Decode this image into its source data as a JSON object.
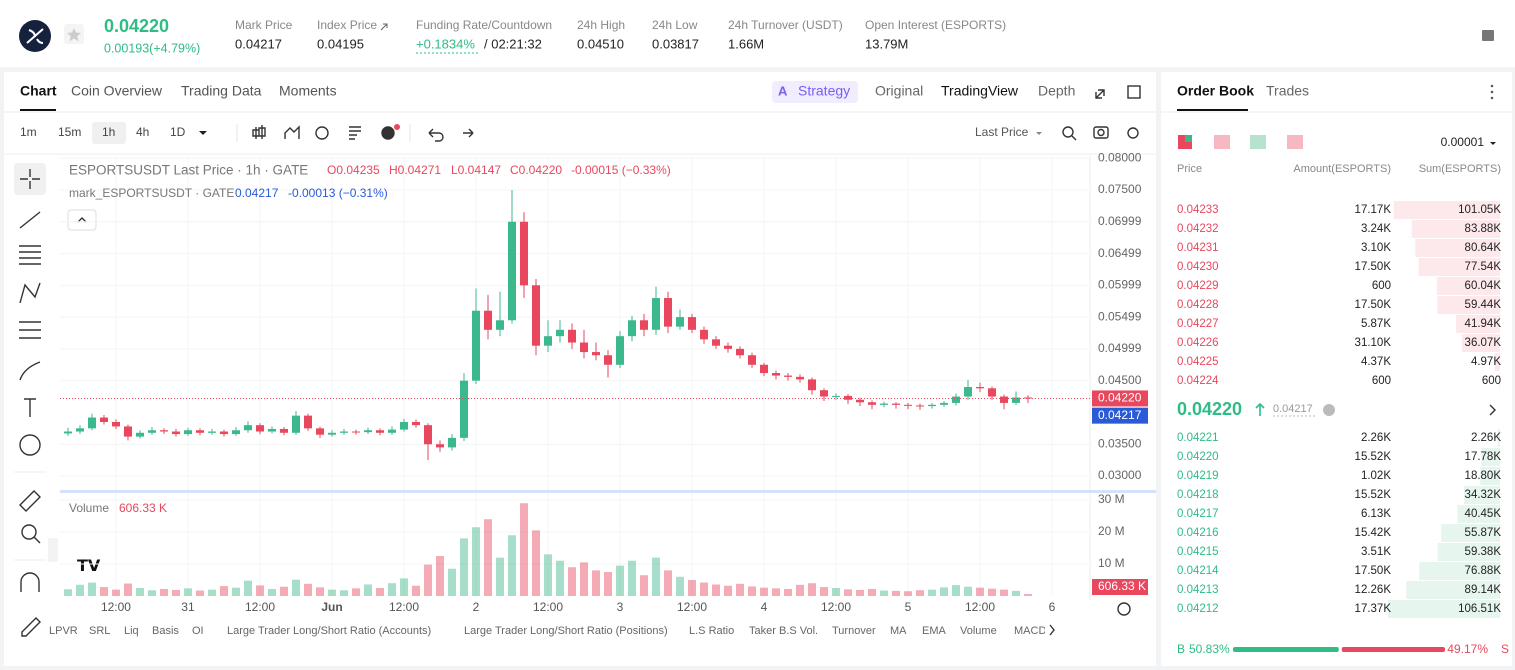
{
  "header": {
    "price": "0.04220",
    "change": "0.00193(+4.79%)",
    "stats": [
      {
        "label": "Mark Price",
        "value": "0.04217"
      },
      {
        "label": "Index Price",
        "value": "0.04195"
      },
      {
        "label": "Funding Rate/Countdown",
        "value": "+0.1834%",
        "countdown": "/ 02:21:32"
      },
      {
        "label": "24h High",
        "value": "0.04510"
      },
      {
        "label": "24h Low",
        "value": "0.03817"
      },
      {
        "label": "24h Turnover (USDT)",
        "value": "1.66M"
      },
      {
        "label": "Open Interest (ESPORTS)",
        "value": "13.79M"
      }
    ]
  },
  "tabs": [
    "Chart",
    "Coin Overview",
    "Trading Data",
    "Moments"
  ],
  "view_tabs": [
    "Strategy",
    "Original",
    "TradingView",
    "Depth"
  ],
  "intervals": [
    "1m",
    "15m",
    "1h",
    "4h",
    "1D"
  ],
  "price_source": "Last Price",
  "indicators": [
    "LPVR",
    "SRL",
    "Liq",
    "Basis",
    "OI",
    "Large Trader Long/Short Ratio (Accounts)",
    "Large Trader Long/Short Ratio (Positions)",
    "L.S Ratio",
    "Taker B.S Vol.",
    "Turnover",
    "MA",
    "EMA",
    "Volume",
    "MACD"
  ],
  "chart_data": {
    "type": "candlestick",
    "grid": true,
    "legend": {
      "title": "ESPORTSUSDT Last Price · 1h · GATE",
      "open": "O0.04235",
      "high": "H0.04271",
      "low": "L0.04147",
      "close": "C0.04220",
      "change": "-0.00015 (−0.33%)",
      "mark_title": "mark_ESPORTSUSDT · GATE",
      "mark_value": "0.04217",
      "mark_change": "-0.00013 (−0.31%)",
      "volume_title": "Volume",
      "volume_last": "606.33 K"
    },
    "last_price": {
      "value": 0.0422,
      "label": "0.04220"
    },
    "mark_price": {
      "value": 0.04217,
      "label": "0.04217"
    },
    "xlim": [
      -9.33,
      162.33
    ],
    "xticks": [
      {
        "value": 0,
        "label": "12:00"
      },
      {
        "value": 12,
        "label": "31"
      },
      {
        "value": 24,
        "label": "12:00"
      },
      {
        "value": 36,
        "label": "Jun"
      },
      {
        "value": 48,
        "label": "12:00"
      },
      {
        "value": 60,
        "label": "2"
      },
      {
        "value": 72,
        "label": "12:00"
      },
      {
        "value": 84,
        "label": "3"
      },
      {
        "value": 96,
        "label": "12:00"
      },
      {
        "value": 108,
        "label": "4"
      },
      {
        "value": 120,
        "label": "12:00"
      },
      {
        "value": 132,
        "label": "5"
      },
      {
        "value": 144,
        "label": "12:00"
      },
      {
        "value": 156,
        "label": "6"
      }
    ],
    "ylim": [
      0.0278,
      0.0805
    ],
    "yticks": [
      {
        "value": 0.08,
        "label": "0.08000"
      },
      {
        "value": 0.075,
        "label": "0.07500"
      },
      0.06999,
      0.06499,
      0.05999,
      0.05499,
      0.04999,
      {
        "value": 0.045,
        "label": "0.04500"
      },
      {
        "value": 0.035,
        "label": "0.03500"
      },
      {
        "value": 0.03,
        "label": "0.03000"
      }
    ],
    "vlim": [
      0,
      32500000
    ],
    "vticks": [
      {
        "value": 10000000,
        "label": "10 M"
      },
      {
        "value": 20000000,
        "label": "20 M"
      },
      {
        "value": 30000000,
        "label": "30 M"
      }
    ],
    "up_color": "#3bb88c",
    "down_color": "#e8475e",
    "x": [
      -8,
      -6,
      -4,
      -2,
      0,
      2,
      4,
      6,
      8,
      10,
      12,
      14,
      16,
      18,
      20,
      22,
      24,
      26,
      28,
      30,
      32,
      34,
      36,
      38,
      40,
      42,
      44,
      46,
      48,
      50,
      52,
      54,
      56,
      58,
      60,
      62,
      64,
      66,
      68,
      70,
      72,
      74,
      76,
      78,
      80,
      82,
      84,
      86,
      88,
      90,
      92,
      94,
      96,
      98,
      100,
      102,
      104,
      106,
      108,
      110,
      112,
      114,
      116,
      118,
      120,
      122,
      124,
      126,
      128,
      130,
      132,
      134,
      136,
      138,
      140,
      142,
      144,
      146,
      148,
      150,
      152
    ],
    "open": [
      0.0367,
      0.037,
      0.0375,
      0.0392,
      0.0385,
      0.0378,
      0.0362,
      0.0368,
      0.0372,
      0.037,
      0.0366,
      0.0372,
      0.0368,
      0.037,
      0.0366,
      0.0372,
      0.038,
      0.037,
      0.0374,
      0.0368,
      0.0395,
      0.0375,
      0.0365,
      0.0368,
      0.037,
      0.0369,
      0.0372,
      0.0368,
      0.0373,
      0.0385,
      0.038,
      0.035,
      0.0345,
      0.036,
      0.045,
      0.056,
      0.053,
      0.0545,
      0.07,
      0.06,
      0.0505,
      0.052,
      0.053,
      0.051,
      0.0495,
      0.049,
      0.0475,
      0.052,
      0.0545,
      0.053,
      0.058,
      0.0535,
      0.055,
      0.053,
      0.0515,
      0.0505,
      0.05,
      0.049,
      0.0475,
      0.0462,
      0.0458,
      0.0456,
      0.0452,
      0.0435,
      0.0425,
      0.0426,
      0.042,
      0.0416,
      0.0412,
      0.0414,
      0.0412,
      0.0411,
      0.041,
      0.0412,
      0.0415,
      0.0425,
      0.044,
      0.0438,
      0.0425,
      0.0415,
      0.04235
    ],
    "high": [
      0.0376,
      0.038,
      0.0398,
      0.0396,
      0.0389,
      0.0381,
      0.0372,
      0.0377,
      0.0375,
      0.0374,
      0.0376,
      0.0375,
      0.0374,
      0.0373,
      0.0377,
      0.0386,
      0.0383,
      0.0378,
      0.0377,
      0.0402,
      0.0398,
      0.0378,
      0.0372,
      0.0374,
      0.0373,
      0.0376,
      0.0375,
      0.0378,
      0.039,
      0.0389,
      0.0383,
      0.0356,
      0.0366,
      0.0462,
      0.0595,
      0.0585,
      0.059,
      0.075,
      0.0715,
      0.061,
      0.0545,
      0.0545,
      0.054,
      0.053,
      0.051,
      0.0498,
      0.0528,
      0.0552,
      0.0555,
      0.0598,
      0.059,
      0.0562,
      0.0555,
      0.0535,
      0.052,
      0.051,
      0.0504,
      0.0494,
      0.0478,
      0.0466,
      0.0462,
      0.046,
      0.0455,
      0.0438,
      0.043,
      0.0429,
      0.0423,
      0.0419,
      0.0417,
      0.0416,
      0.0415,
      0.0414,
      0.0415,
      0.0418,
      0.043,
      0.0451,
      0.0447,
      0.0441,
      0.0428,
      0.0433,
      0.04271
    ],
    "low": [
      0.0363,
      0.0366,
      0.0372,
      0.0381,
      0.0374,
      0.0356,
      0.0359,
      0.0365,
      0.0366,
      0.0362,
      0.0363,
      0.0364,
      0.0365,
      0.0362,
      0.0363,
      0.0368,
      0.0366,
      0.0367,
      0.0364,
      0.0365,
      0.0371,
      0.036,
      0.0362,
      0.0365,
      0.0365,
      0.0366,
      0.0364,
      0.0365,
      0.037,
      0.0376,
      0.0325,
      0.0338,
      0.034,
      0.0355,
      0.0445,
      0.0515,
      0.052,
      0.054,
      0.058,
      0.049,
      0.0495,
      0.051,
      0.05,
      0.0485,
      0.0482,
      0.0455,
      0.047,
      0.0512,
      0.052,
      0.0522,
      0.0525,
      0.053,
      0.0525,
      0.0508,
      0.05,
      0.0494,
      0.0485,
      0.047,
      0.0457,
      0.0452,
      0.045,
      0.0447,
      0.0428,
      0.0418,
      0.042,
      0.0413,
      0.041,
      0.0405,
      0.0408,
      0.0406,
      0.0405,
      0.0404,
      0.0406,
      0.0409,
      0.0411,
      0.042,
      0.0432,
      0.042,
      0.0405,
      0.0412,
      0.04147
    ],
    "close": [
      0.037,
      0.0375,
      0.0392,
      0.0385,
      0.0378,
      0.0362,
      0.0368,
      0.0372,
      0.037,
      0.0366,
      0.0372,
      0.0368,
      0.037,
      0.0366,
      0.0372,
      0.038,
      0.037,
      0.0374,
      0.0368,
      0.0395,
      0.0375,
      0.0365,
      0.0368,
      0.037,
      0.0369,
      0.0372,
      0.0368,
      0.0373,
      0.0385,
      0.038,
      0.035,
      0.0345,
      0.036,
      0.045,
      0.056,
      0.053,
      0.0545,
      0.07,
      0.06,
      0.0505,
      0.052,
      0.053,
      0.051,
      0.0495,
      0.049,
      0.0475,
      0.052,
      0.0545,
      0.053,
      0.058,
      0.0535,
      0.055,
      0.053,
      0.0515,
      0.0505,
      0.05,
      0.049,
      0.0475,
      0.0462,
      0.0458,
      0.0456,
      0.0452,
      0.0435,
      0.0425,
      0.0426,
      0.042,
      0.0416,
      0.0412,
      0.0414,
      0.0412,
      0.0411,
      0.041,
      0.0412,
      0.0415,
      0.0425,
      0.044,
      0.0438,
      0.0425,
      0.0415,
      0.04235,
      0.0422
    ],
    "volume": [
      2100000,
      3500000,
      4200000,
      2800000,
      2000000,
      3900000,
      2500000,
      1800000,
      2200000,
      1900000,
      2400000,
      1700000,
      2000000,
      3100000,
      2600000,
      4800000,
      3300000,
      2200000,
      2900000,
      5100000,
      3800000,
      2700000,
      2000000,
      1800000,
      2400000,
      3600000,
      2500000,
      4000000,
      5500000,
      3200000,
      9800000,
      12500000,
      8500000,
      18000000,
      21500000,
      24000000,
      12000000,
      19000000,
      29000000,
      20500000,
      13000000,
      11000000,
      9000000,
      10500000,
      8000000,
      7500000,
      9500000,
      11000000,
      6500000,
      12000000,
      8000000,
      6000000,
      5000000,
      4200000,
      3600000,
      3200000,
      3800000,
      3000000,
      2600000,
      2400000,
      2200000,
      3500000,
      4000000,
      2800000,
      2500000,
      2100000,
      1900000,
      2200000,
      1700000,
      1600000,
      1500000,
      1800000,
      2000000,
      2700000,
      3400000,
      2900000,
      2600000,
      2300000,
      2000000,
      1600000,
      606330
    ]
  },
  "order_book": {
    "tabs": [
      "Order Book",
      "Trades"
    ],
    "precision": "0.00001",
    "columns": [
      "Price",
      "Amount(ESPORTS)",
      "Sum(ESPORTS)"
    ],
    "asks": {
      "prices": [
        "0.04233",
        "0.04232",
        "0.04231",
        "0.04230",
        "0.04229",
        "0.04228",
        "0.04227",
        "0.04226",
        "0.04225",
        "0.04224"
      ],
      "amounts": [
        "17.17K",
        "3.24K",
        "3.10K",
        "17.50K",
        "600",
        "17.50K",
        "5.87K",
        "31.10K",
        "4.37K",
        "600"
      ],
      "sums": [
        101050,
        83880,
        80640,
        77540,
        60040,
        59440,
        41940,
        36070,
        4970,
        600
      ],
      "sum_labels": [
        "101.05K",
        "83.88K",
        "80.64K",
        "77.54K",
        "60.04K",
        "59.44K",
        "41.94K",
        "36.07K",
        "4.97K",
        "600"
      ]
    },
    "bids": {
      "prices": [
        "0.04221",
        "0.04220",
        "0.04219",
        "0.04218",
        "0.04217",
        "0.04216",
        "0.04215",
        "0.04214",
        "0.04213",
        "0.04212"
      ],
      "amounts": [
        "2.26K",
        "15.52K",
        "1.02K",
        "15.52K",
        "6.13K",
        "15.42K",
        "3.51K",
        "17.50K",
        "12.26K",
        "17.37K"
      ],
      "sums": [
        2260,
        17780,
        18800,
        34320,
        40450,
        55870,
        59380,
        76880,
        89140,
        106510
      ],
      "sum_labels": [
        "2.26K",
        "17.78K",
        "18.80K",
        "34.32K",
        "40.45K",
        "55.87K",
        "59.38K",
        "76.88K",
        "89.14K",
        "106.51K"
      ]
    },
    "last_price": "0.04220",
    "mark_price": "0.04217",
    "buy_label": "B",
    "sell_label": "S",
    "buy": {
      "value": 50.83,
      "label": "50.83%"
    },
    "sell": {
      "value": 49.17,
      "label": "49.17%"
    }
  }
}
